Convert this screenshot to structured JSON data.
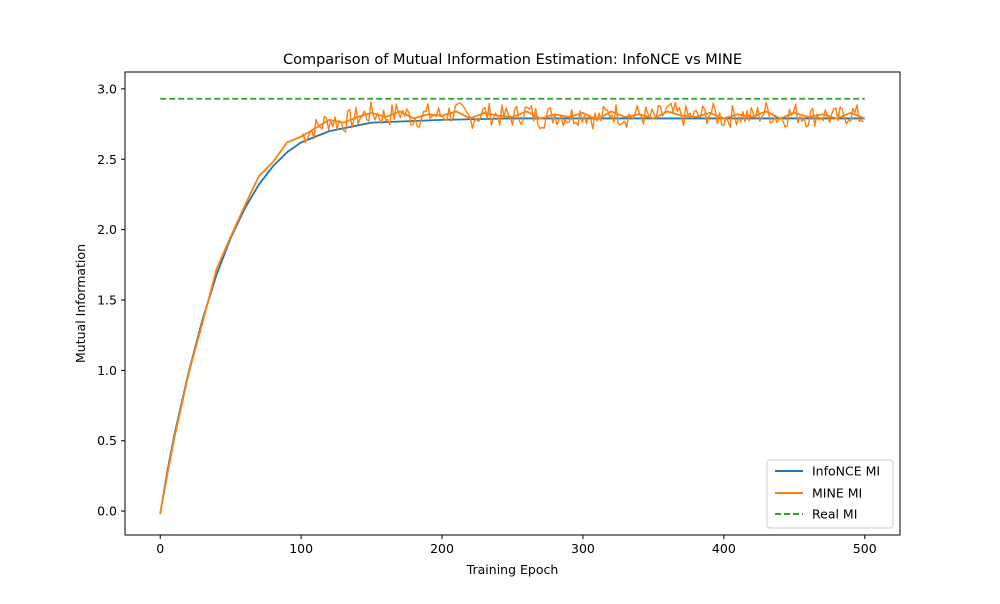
{
  "chart_data": {
    "type": "line",
    "title": "Comparison of Mutual Information Estimation: InfoNCE vs MINE",
    "xlabel": "Training Epoch",
    "ylabel": "Mutual Information",
    "xlim": [
      -25,
      525
    ],
    "ylim": [
      -0.17,
      3.12
    ],
    "xticks": [
      0,
      100,
      200,
      300,
      400,
      500
    ],
    "xtick_labels": [
      "0",
      "100",
      "200",
      "300",
      "400",
      "500"
    ],
    "yticks": [
      0.0,
      0.5,
      1.0,
      1.5,
      2.0,
      2.5,
      3.0
    ],
    "ytick_labels": [
      "0.0",
      "0.5",
      "1.0",
      "1.5",
      "2.0",
      "2.5",
      "3.0"
    ],
    "grid": false,
    "legend_position": "lower-right",
    "series": [
      {
        "name": "InfoNCE MI",
        "color": "#1f77b4",
        "style": "solid",
        "x": [
          0,
          5,
          10,
          20,
          30,
          40,
          50,
          60,
          70,
          80,
          90,
          100,
          120,
          150,
          200,
          250,
          300,
          350,
          400,
          450,
          500
        ],
        "y": [
          -0.02,
          0.28,
          0.54,
          0.98,
          1.36,
          1.68,
          1.94,
          2.15,
          2.32,
          2.45,
          2.55,
          2.62,
          2.7,
          2.76,
          2.78,
          2.79,
          2.79,
          2.79,
          2.79,
          2.79,
          2.79
        ]
      },
      {
        "name": "MINE MI",
        "color": "#ff7f0e",
        "style": "solid",
        "x": [
          0,
          5,
          10,
          20,
          30,
          40,
          50,
          60,
          70,
          80,
          90,
          100,
          110,
          120,
          130,
          140,
          150,
          160,
          170,
          180,
          190,
          200,
          210,
          220,
          230,
          240,
          250,
          260,
          270,
          280,
          290,
          300,
          310,
          320,
          330,
          340,
          350,
          360,
          370,
          380,
          390,
          400,
          410,
          420,
          430,
          440,
          450,
          460,
          470,
          480,
          490,
          500
        ],
        "y": [
          -0.02,
          0.26,
          0.52,
          0.97,
          1.34,
          1.72,
          1.95,
          2.17,
          2.38,
          2.48,
          2.62,
          2.66,
          2.72,
          2.78,
          2.76,
          2.8,
          2.83,
          2.8,
          2.84,
          2.79,
          2.82,
          2.81,
          2.84,
          2.79,
          2.83,
          2.81,
          2.8,
          2.84,
          2.79,
          2.82,
          2.8,
          2.83,
          2.78,
          2.84,
          2.8,
          2.82,
          2.79,
          2.84,
          2.81,
          2.8,
          2.83,
          2.79,
          2.82,
          2.8,
          2.84,
          2.79,
          2.83,
          2.8,
          2.82,
          2.79,
          2.83,
          2.79
        ]
      },
      {
        "name": "Real MI",
        "color": "#2ca02c",
        "style": "dashed",
        "x": [
          0,
          500
        ],
        "y": [
          2.93,
          2.93
        ]
      }
    ]
  }
}
